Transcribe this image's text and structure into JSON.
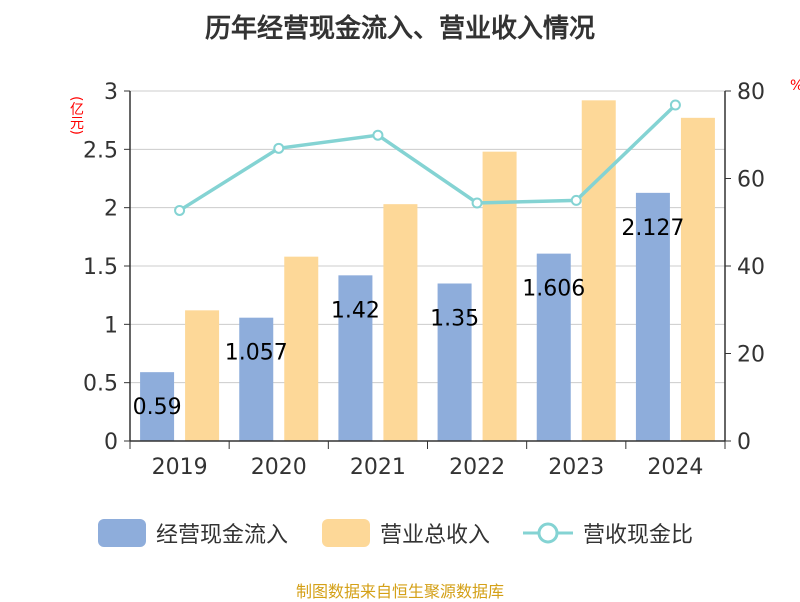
{
  "title": "历年经营现金流入、营业收入情况",
  "unit_left": "(亿元)",
  "unit_right": "%",
  "footer": "制图数据来自恒生聚源数据库",
  "colors": {
    "cash_bar": "#8eaddb",
    "revenue_bar": "#fdd898",
    "ratio_line": "#84d3d3",
    "title": "#333333",
    "footer": "#d4a017",
    "unit": "#ff0000"
  },
  "legend": {
    "cash": "经营现金流入",
    "revenue": "营业总收入",
    "ratio": "营收现金比"
  },
  "chart_data": {
    "type": "bar",
    "categories": [
      "2019",
      "2020",
      "2021",
      "2022",
      "2023",
      "2024"
    ],
    "series": [
      {
        "name": "经营现金流入",
        "type": "bar",
        "axis": "left",
        "values": [
          0.59,
          1.057,
          1.42,
          1.35,
          1.606,
          2.127
        ],
        "labels": [
          "0.59",
          "1.057",
          "1.42",
          "1.35",
          "1.606",
          "2.127"
        ]
      },
      {
        "name": "营业总收入",
        "type": "bar",
        "axis": "left",
        "values": [
          1.12,
          1.58,
          2.03,
          2.48,
          2.92,
          2.77
        ]
      },
      {
        "name": "营收现金比",
        "type": "line",
        "axis": "right",
        "values": [
          52.7,
          66.9,
          69.9,
          54.4,
          55.0,
          76.8
        ]
      }
    ],
    "y_left": {
      "range": [
        0,
        3
      ],
      "ticks": [
        "0",
        "0.5",
        "1",
        "1.5",
        "2",
        "2.5",
        "3"
      ],
      "unit": "(亿元)"
    },
    "y_right": {
      "range": [
        0,
        80
      ],
      "ticks": [
        "0",
        "20",
        "40",
        "60",
        "80"
      ],
      "unit": "%"
    },
    "grid": true,
    "legend_position": "bottom"
  }
}
